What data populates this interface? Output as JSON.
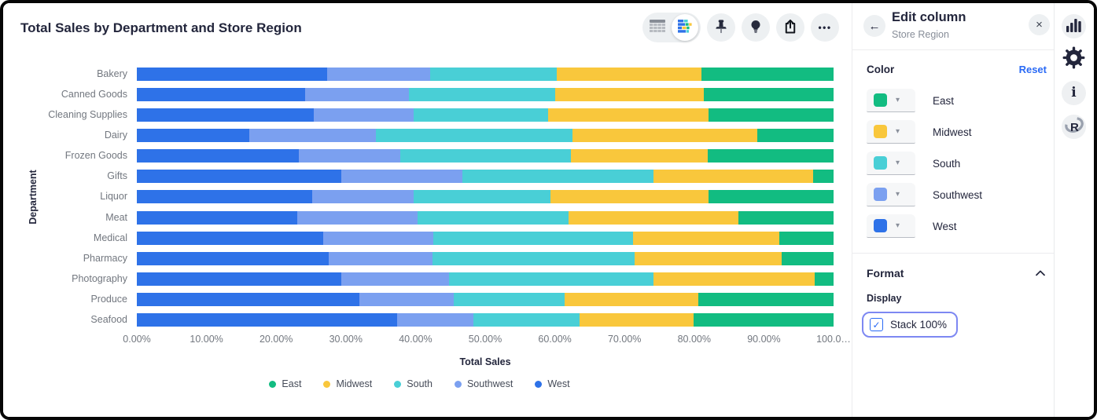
{
  "header": {
    "title": "Total Sales by Department and Store Region"
  },
  "icons": {
    "back": "←",
    "close": "×",
    "ellipsis": "•••",
    "caret": "▾",
    "check": "✓",
    "info": "i",
    "r_logo": "R"
  },
  "chart_data": {
    "type": "bar",
    "orientation": "horizontal",
    "stacked": true,
    "stack_100": true,
    "title": "Total Sales by Department and Store Region",
    "xlabel": "Total Sales",
    "ylabel": "Department",
    "xlim": [
      0,
      100
    ],
    "x_ticks": [
      "0.00%",
      "10.00%",
      "20.00%",
      "30.00%",
      "40.00%",
      "50.00%",
      "60.00%",
      "70.00%",
      "80.00%",
      "90.00%",
      "100.0…"
    ],
    "categories": [
      "Bakery",
      "Canned Goods",
      "Cleaning Supplies",
      "Dairy",
      "Frozen Goods",
      "Gifts",
      "Liquor",
      "Meat",
      "Medical",
      "Pharmacy",
      "Photography",
      "Produce",
      "Seafood"
    ],
    "series": [
      {
        "name": "West",
        "color": "#2e72e8",
        "values": [
          27.3,
          24.1,
          25.4,
          16.1,
          23.3,
          29.4,
          25.2,
          23.0,
          26.8,
          27.5,
          29.4,
          31.9,
          37.4
        ]
      },
      {
        "name": "Southwest",
        "color": "#7ba0f0",
        "values": [
          14.8,
          15.0,
          14.3,
          18.2,
          14.5,
          17.3,
          14.5,
          17.3,
          15.7,
          14.9,
          15.4,
          13.6,
          10.9
        ]
      },
      {
        "name": "South",
        "color": "#49cfd6",
        "values": [
          18.2,
          20.9,
          19.3,
          28.2,
          24.5,
          27.5,
          19.7,
          21.7,
          28.7,
          29.0,
          29.3,
          15.9,
          15.3
        ]
      },
      {
        "name": "Midwest",
        "color": "#f9c73c",
        "values": [
          20.7,
          21.4,
          23.1,
          26.6,
          19.6,
          22.9,
          22.6,
          24.4,
          21.0,
          21.2,
          23.2,
          19.2,
          16.3
        ]
      },
      {
        "name": "East",
        "color": "#12bc81",
        "values": [
          19.0,
          18.6,
          17.9,
          10.9,
          18.1,
          2.9,
          18.0,
          13.6,
          7.8,
          7.4,
          2.7,
          19.4,
          20.1
        ]
      }
    ],
    "legend_order": [
      "East",
      "Midwest",
      "South",
      "Southwest",
      "West"
    ],
    "legend_position": "bottom",
    "grid": false
  },
  "panel": {
    "title": "Edit column",
    "subtitle": "Store Region",
    "color_section": {
      "label": "Color",
      "reset_label": "Reset",
      "entries": [
        {
          "name": "East",
          "color": "#12bc81"
        },
        {
          "name": "Midwest",
          "color": "#f9c73c"
        },
        {
          "name": "South",
          "color": "#49cfd6"
        },
        {
          "name": "Southwest",
          "color": "#7ba0f0"
        },
        {
          "name": "West",
          "color": "#2e72e8"
        }
      ]
    },
    "format_section": {
      "label": "Format",
      "display_label": "Display",
      "stack_checkbox": {
        "label": "Stack 100%",
        "checked": true
      }
    }
  }
}
